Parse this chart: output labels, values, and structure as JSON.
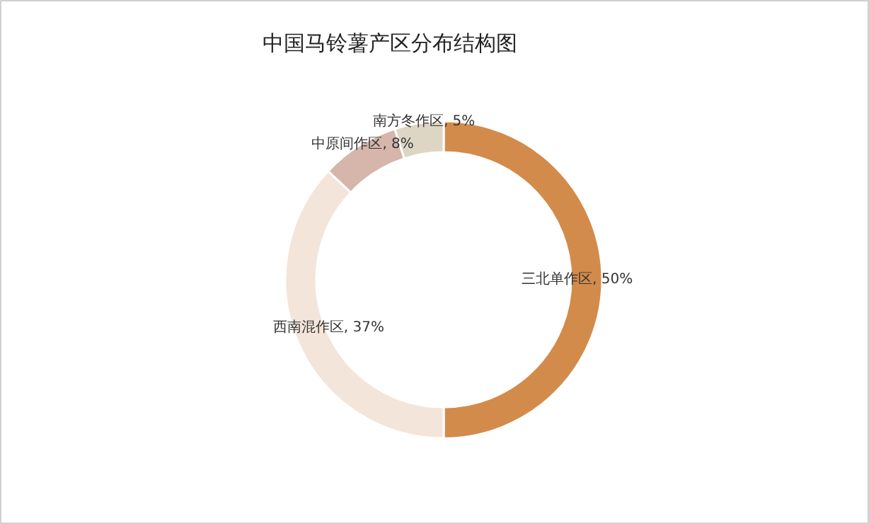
{
  "chart_data": {
    "type": "donut",
    "title": "中国马铃薯产区分布结构图",
    "categories": [
      "三北单作区",
      "西南混作区",
      "中原间作区",
      "南方冬作区"
    ],
    "values": [
      50,
      37,
      8,
      5
    ],
    "colors": [
      "#d38b4b",
      "#f3e5da",
      "#d6b5aa",
      "#ddd6c4"
    ],
    "value_labels": [
      "50%",
      "37%",
      "8%",
      "5%"
    ]
  }
}
